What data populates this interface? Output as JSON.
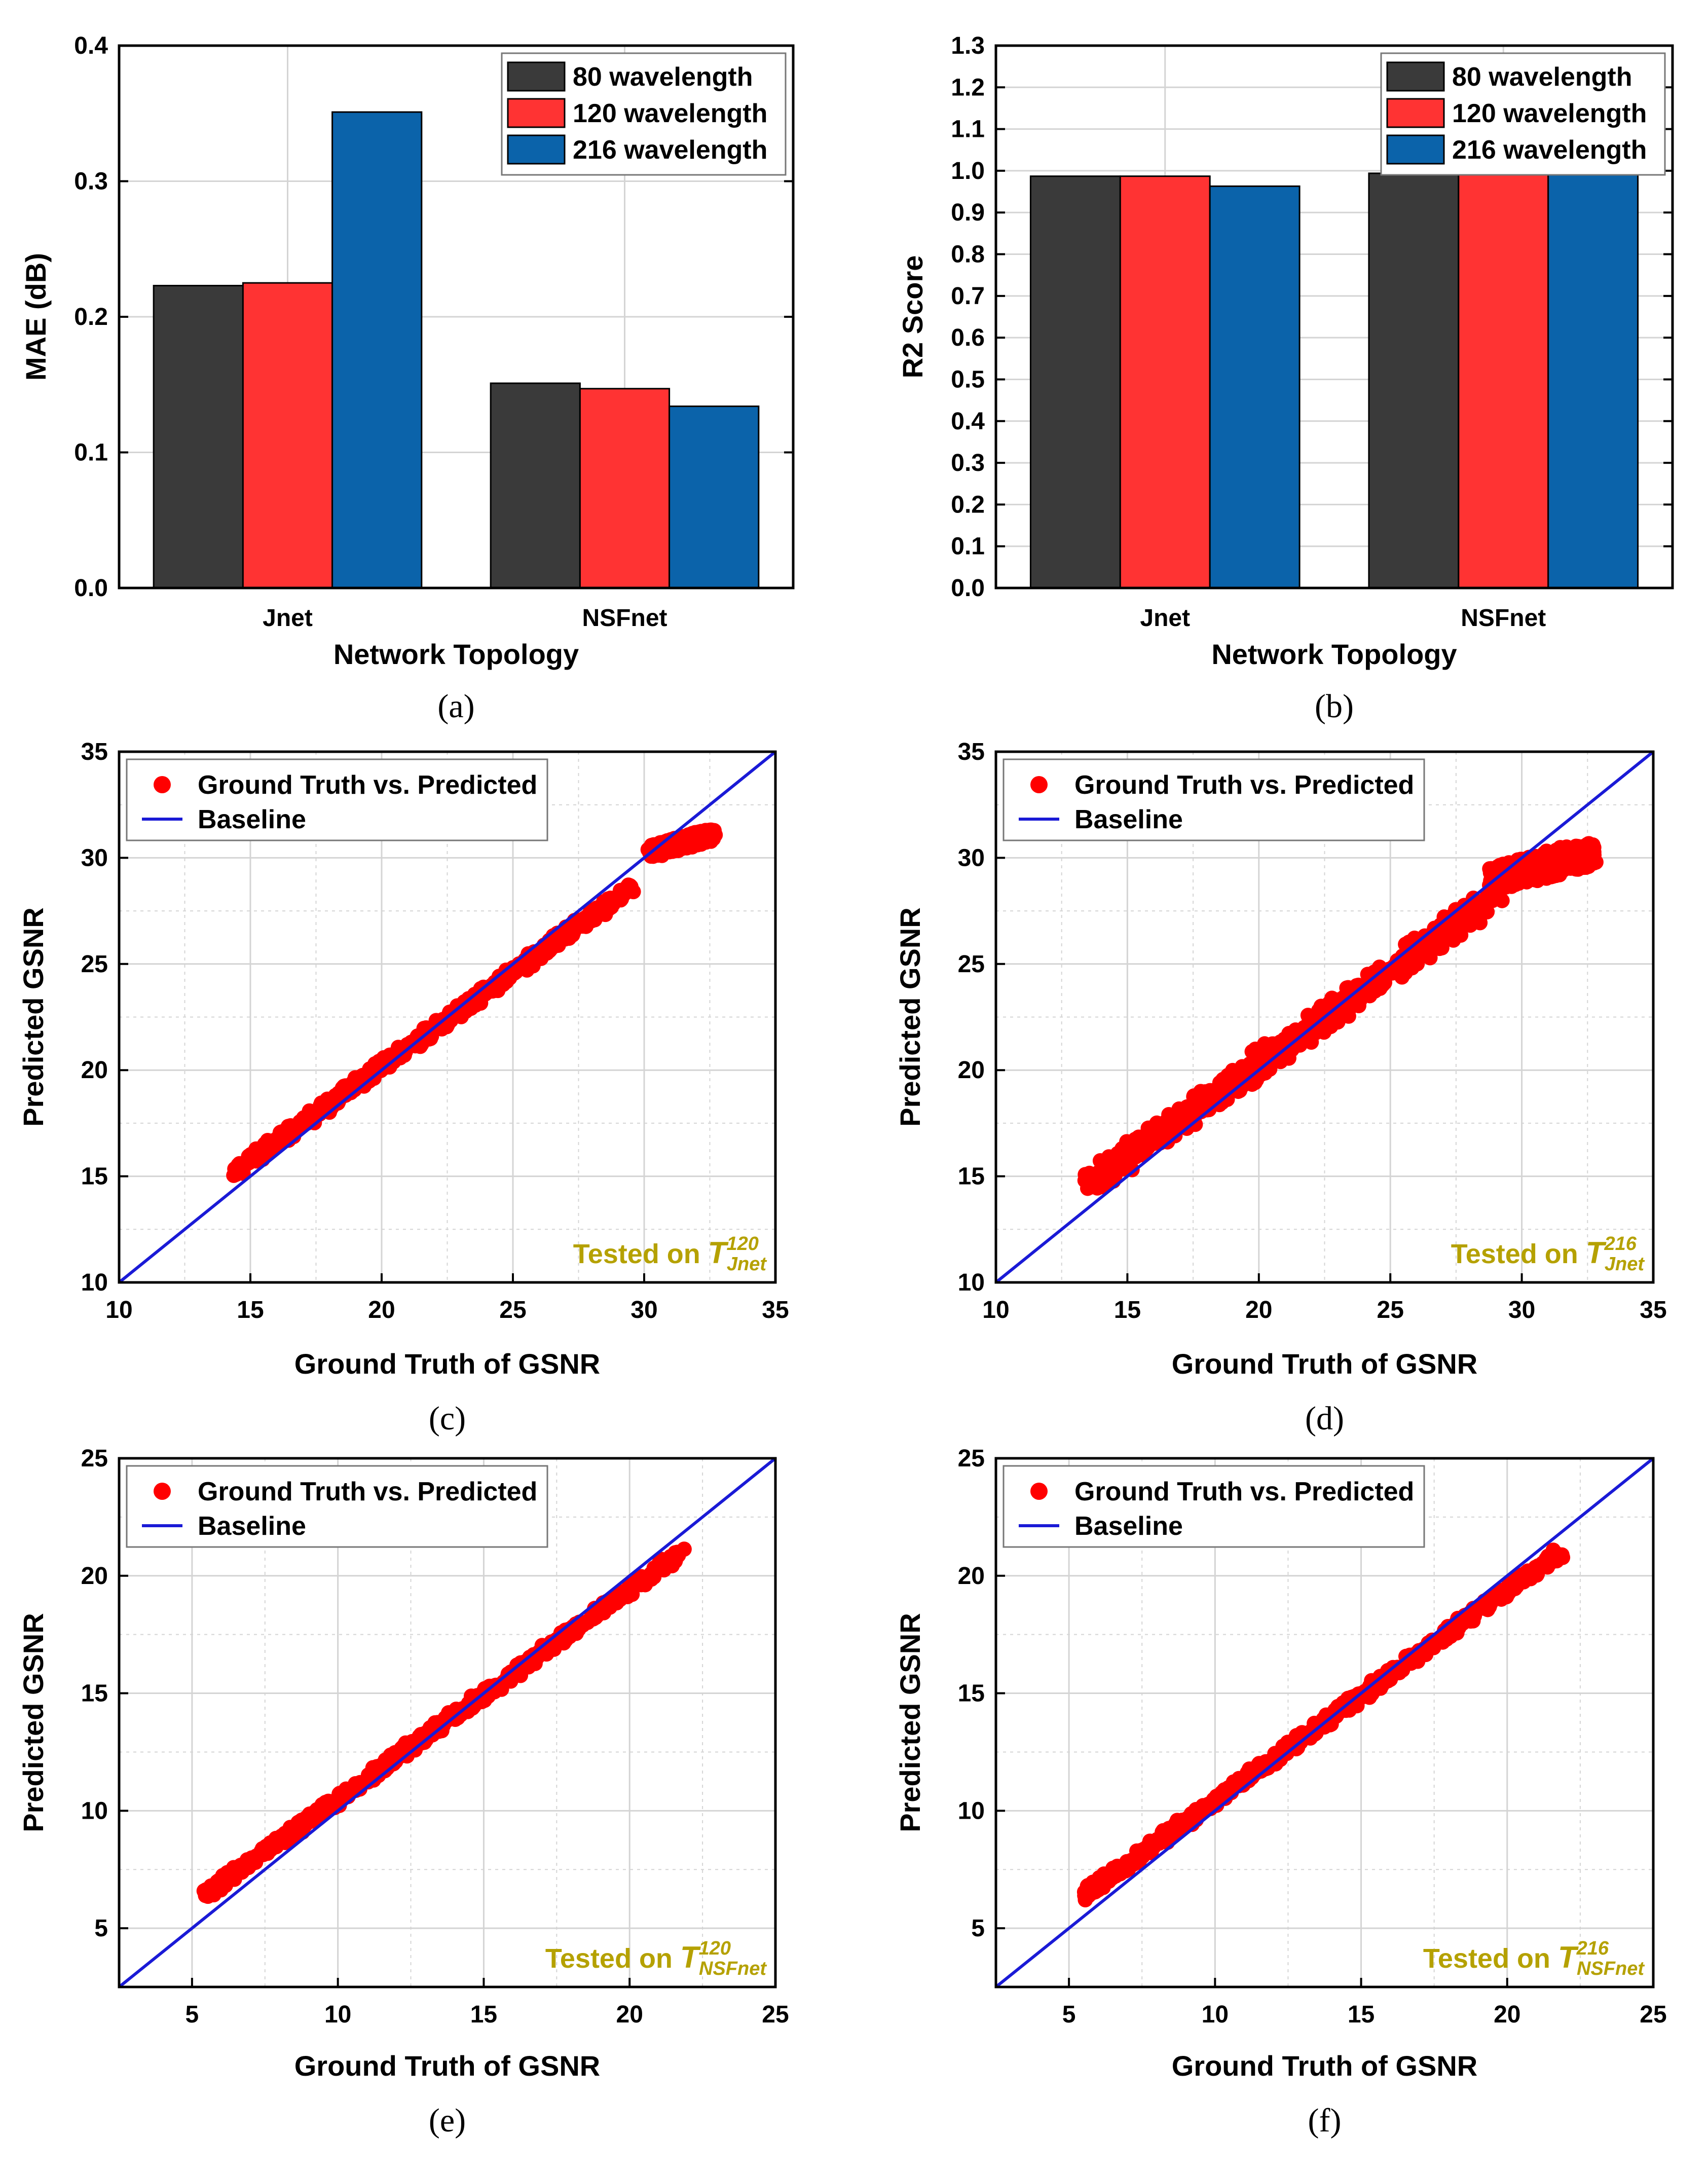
{
  "chart_data": [
    {
      "id": "a",
      "type": "bar",
      "caption": "(a)",
      "categories": [
        "Jnet",
        "NSFnet"
      ],
      "series": [
        {
          "name": "80 wavelength",
          "color": "#3a3a3a",
          "values": [
            0.223,
            0.151
          ]
        },
        {
          "name": "120 wavelength",
          "color": "#ff3333",
          "values": [
            0.225,
            0.147
          ]
        },
        {
          "name": "216 wavelength",
          "color": "#0b63aa",
          "values": [
            0.351,
            0.134
          ]
        }
      ],
      "xlabel": "Network Topology",
      "ylabel": "MAE (dB)",
      "ylim": [
        0,
        0.4
      ],
      "yticks": [
        "0.0",
        "0.1",
        "0.2",
        "0.3",
        "0.4"
      ],
      "legend": "top-right"
    },
    {
      "id": "b",
      "type": "bar",
      "caption": "(b)",
      "categories": [
        "Jnet",
        "NSFnet"
      ],
      "series": [
        {
          "name": "80 wavelength",
          "color": "#3a3a3a",
          "values": [
            0.987,
            0.994
          ]
        },
        {
          "name": "120 wavelength",
          "color": "#ff3333",
          "values": [
            0.987,
            0.994
          ]
        },
        {
          "name": "216 wavelength",
          "color": "#0b63aa",
          "values": [
            0.963,
            0.995
          ]
        }
      ],
      "xlabel": "Network Topology",
      "ylabel": "R2 Score",
      "ylim": [
        0,
        1.3
      ],
      "yticks": [
        "0.0",
        "0.1",
        "0.2",
        "0.3",
        "0.4",
        "0.5",
        "0.6",
        "0.7",
        "0.8",
        "0.9",
        "1.0",
        "1.1",
        "1.2",
        "1.3"
      ],
      "legend": "top-right"
    },
    {
      "id": "c",
      "type": "scatter",
      "caption": "(c)",
      "xlabel": "Ground Truth of GSNR",
      "ylabel": "Predicted GSNR",
      "xlim": [
        10,
        35
      ],
      "ylim": [
        10,
        35
      ],
      "xticks": [
        "10",
        "15",
        "20",
        "25",
        "30",
        "35"
      ],
      "yticks": [
        "10",
        "15",
        "20",
        "25",
        "30",
        "35"
      ],
      "legend_scatter": "Ground Truth vs. Predicted",
      "legend_line": "Baseline",
      "annotation_prefix": "Tested on ",
      "annotation_symbol": "T",
      "annotation_sup": "120",
      "annotation_sub": "Jnet",
      "spread": 0.55,
      "bias": 0.1,
      "segments": [
        {
          "x": [
            14.5,
            29.5
          ],
          "y": [
            15.3,
            28.6
          ]
        },
        {
          "x": [
            30.3,
            32.6
          ],
          "y": [
            30.3,
            31.1
          ]
        }
      ]
    },
    {
      "id": "d",
      "type": "scatter",
      "caption": "(d)",
      "xlabel": "Ground Truth of GSNR",
      "ylabel": "Predicted GSNR",
      "xlim": [
        10,
        35
      ],
      "ylim": [
        10,
        35
      ],
      "xticks": [
        "10",
        "15",
        "20",
        "25",
        "30",
        "35"
      ],
      "yticks": [
        "10",
        "15",
        "20",
        "25",
        "30",
        "35"
      ],
      "legend_scatter": "Ground Truth vs. Predicted",
      "legend_line": "Baseline",
      "annotation_prefix": "Tested on ",
      "annotation_symbol": "T",
      "annotation_sup": "216",
      "annotation_sub": "Jnet",
      "spread": 1.1,
      "bias": 0.2,
      "segments": [
        {
          "x": [
            13.5,
            29.0
          ],
          "y": [
            14.6,
            28.2
          ]
        },
        {
          "x": [
            29.0,
            32.5
          ],
          "y": [
            29.0,
            30.2
          ]
        }
      ]
    },
    {
      "id": "e",
      "type": "scatter",
      "caption": "(e)",
      "xlabel": "Ground Truth of GSNR",
      "ylabel": "Predicted GSNR",
      "xlim": [
        2.5,
        25
      ],
      "ylim": [
        2.5,
        25
      ],
      "xticks": [
        "5",
        "10",
        "15",
        "20",
        "25"
      ],
      "yticks": [
        "5",
        "10",
        "15",
        "20",
        "25"
      ],
      "legend_scatter": "Ground Truth vs. Predicted",
      "legend_line": "Baseline",
      "annotation_prefix": "Tested on ",
      "annotation_symbol": "T",
      "annotation_sup": "120",
      "annotation_sub": "NSFnet",
      "spread": 0.45,
      "bias": 0.1,
      "segments": [
        {
          "x": [
            5.4,
            21.8
          ],
          "y": [
            6.4,
            21.0
          ]
        }
      ]
    },
    {
      "id": "f",
      "type": "scatter",
      "caption": "(f)",
      "xlabel": "Ground Truth of GSNR",
      "ylabel": "Predicted GSNR",
      "xlim": [
        2.5,
        25
      ],
      "ylim": [
        2.5,
        25
      ],
      "xticks": [
        "5",
        "10",
        "15",
        "20",
        "25"
      ],
      "yticks": [
        "5",
        "10",
        "15",
        "20",
        "25"
      ],
      "legend_scatter": "Ground Truth vs. Predicted",
      "legend_line": "Baseline",
      "annotation_prefix": "Tested on ",
      "annotation_symbol": "T",
      "annotation_sup": "216",
      "annotation_sub": "NSFnet",
      "spread": 0.45,
      "bias": 0.1,
      "segments": [
        {
          "x": [
            5.5,
            21.8
          ],
          "y": [
            6.4,
            21.0
          ]
        }
      ]
    }
  ],
  "colors": {
    "scatter": "#ff0000",
    "baseline": "#1a1ad6",
    "annotation": "#b5a100",
    "grid": "#d4d4d4"
  }
}
